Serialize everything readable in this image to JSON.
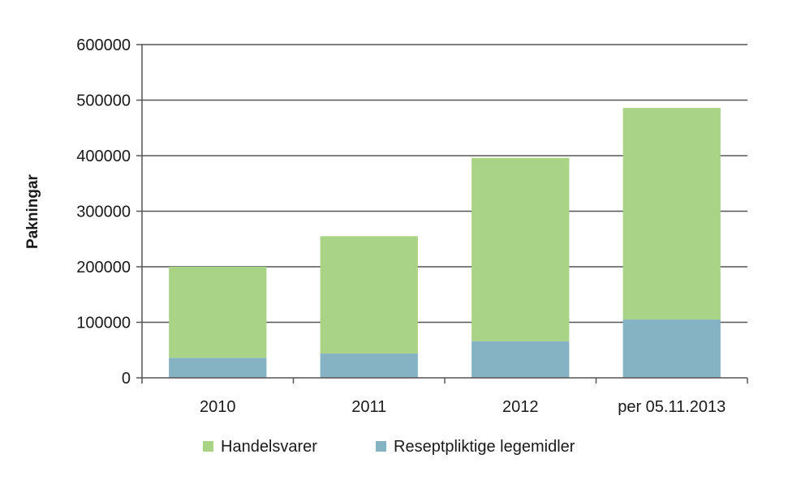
{
  "chart_data": {
    "type": "bar",
    "stacked": true,
    "title": "",
    "xlabel": "",
    "ylabel": "Pakningar",
    "ylim": [
      0,
      600000
    ],
    "yticks": [
      0,
      100000,
      200000,
      300000,
      400000,
      500000,
      600000
    ],
    "ytick_labels": [
      "0",
      "100000",
      "200000",
      "300000",
      "400000",
      "500000",
      "600000"
    ],
    "grid": true,
    "legend_position": "bottom",
    "categories": [
      "2010",
      "2011",
      "2012",
      "per 05.11.2013"
    ],
    "series": [
      {
        "name": "Reseptpliktige legemidler",
        "color": "#86b3c3",
        "values": [
          36000,
          44000,
          66000,
          105000
        ]
      },
      {
        "name": "Handelsvarer",
        "color": "#a9d385",
        "values": [
          164000,
          211000,
          330000,
          381000
        ]
      }
    ],
    "legend_order": [
      "Handelsvarer",
      "Reseptpliktige legemidler"
    ]
  }
}
